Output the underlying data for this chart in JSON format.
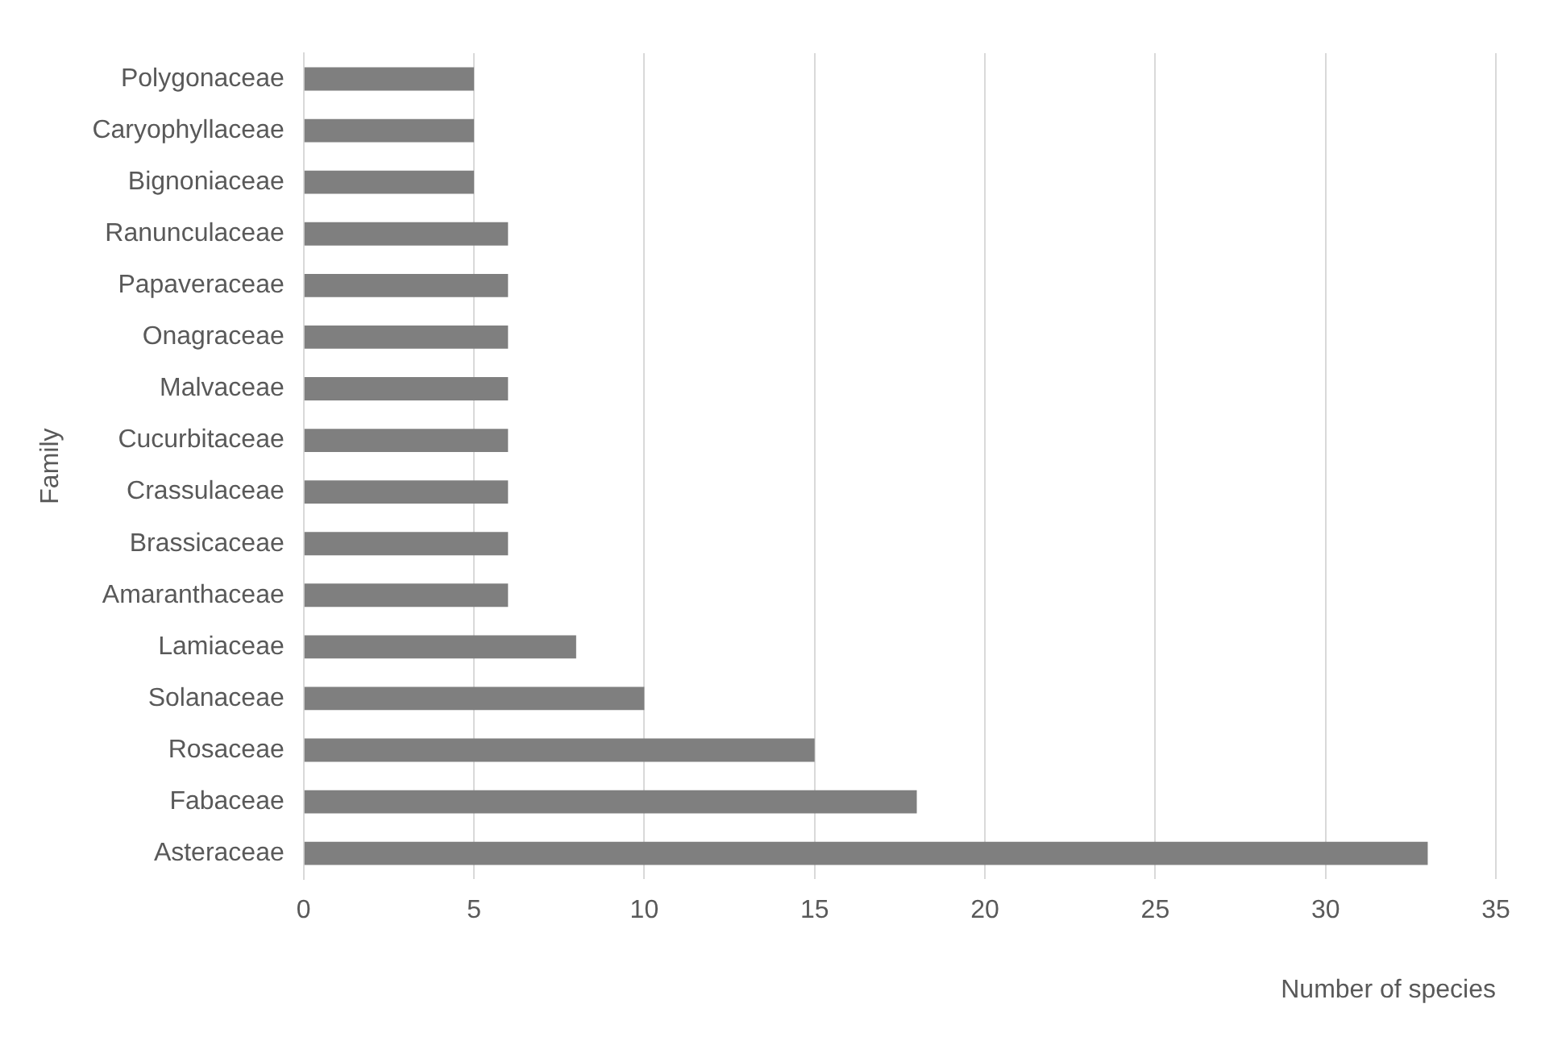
{
  "chart_data": {
    "type": "bar",
    "orientation": "horizontal",
    "xlabel": "Number of species",
    "ylabel": "Family",
    "categories": [
      "Polygonaceae",
      "Caryophyllaceae",
      "Bignoniaceae",
      "Ranunculaceae",
      "Papaveraceae",
      "Onagraceae",
      "Malvaceae",
      "Cucurbitaceae",
      "Crassulaceae",
      "Brassicaceae",
      "Amaranthaceae",
      "Lamiaceae",
      "Solanaceae",
      "Rosaceae",
      "Fabaceae",
      "Asteraceae"
    ],
    "values": [
      5,
      5,
      5,
      6,
      6,
      6,
      6,
      6,
      6,
      6,
      6,
      8,
      10,
      15,
      18,
      33
    ],
    "color": "#7f7f7f",
    "xlim": [
      0,
      35
    ],
    "xticks": [
      0,
      5,
      10,
      15,
      20,
      25,
      30,
      35
    ],
    "grid": "x",
    "legend": false
  }
}
